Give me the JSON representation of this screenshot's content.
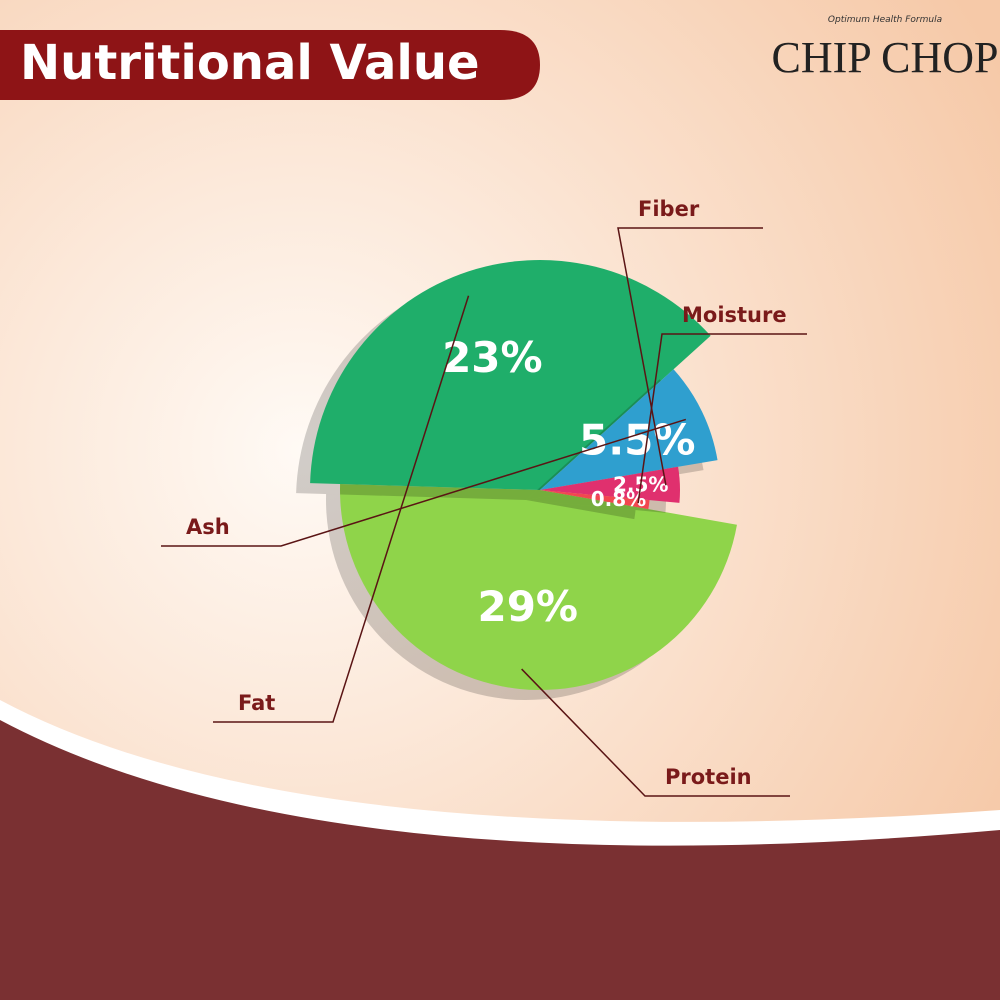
{
  "brand": {
    "name": "CHIP CHOP",
    "tagline": "Optimum Health Formula"
  },
  "chart_data": {
    "type": "pie",
    "title": "Nutritional Value",
    "categories": [
      "Protein",
      "Fat",
      "Ash",
      "Fiber",
      "Moisture"
    ],
    "values": [
      29,
      23,
      5.5,
      2.5,
      0.8
    ],
    "value_labels": [
      "29%",
      "23%",
      "5.5%",
      "2.5%",
      "0.8%"
    ],
    "colors": [
      "#8fd44a",
      "#1fae6a",
      "#2f9fcf",
      "#e0306e",
      "#f2474f"
    ]
  }
}
